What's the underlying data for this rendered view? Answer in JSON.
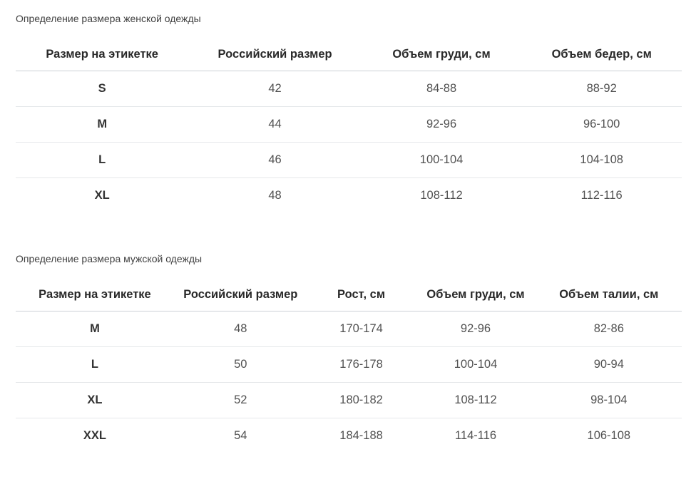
{
  "colors": {
    "background": "#ffffff",
    "title_text": "#414141",
    "header_text": "#292929",
    "cell_text": "#515151",
    "header_border": "#ccd1d6",
    "row_border": "#e5e8ea"
  },
  "women": {
    "title": "Определение размера женской одежды",
    "headers": [
      "Размер на этикетке",
      "Российский размер",
      "Объем груди, см",
      "Объем бедер, см"
    ],
    "rows": [
      [
        "S",
        "42",
        "84-88",
        "88-92"
      ],
      [
        "M",
        "44",
        "92-96",
        "96-100"
      ],
      [
        "L",
        "46",
        "100-104",
        "104-108"
      ],
      [
        "XL",
        "48",
        "108-112",
        "112-116"
      ]
    ]
  },
  "men": {
    "title": "Определение размера мужской одежды",
    "headers": [
      "Размер на этикетке",
      "Российский размер",
      "Рост, см",
      "Объем груди, см",
      "Объем талии, см"
    ],
    "rows": [
      [
        "M",
        "48",
        "170-174",
        "92-96",
        "82-86"
      ],
      [
        "L",
        "50",
        "176-178",
        "100-104",
        "90-94"
      ],
      [
        "XL",
        "52",
        "180-182",
        "108-112",
        "98-104"
      ],
      [
        "XXL",
        "54",
        "184-188",
        "114-116",
        "106-108"
      ]
    ]
  }
}
